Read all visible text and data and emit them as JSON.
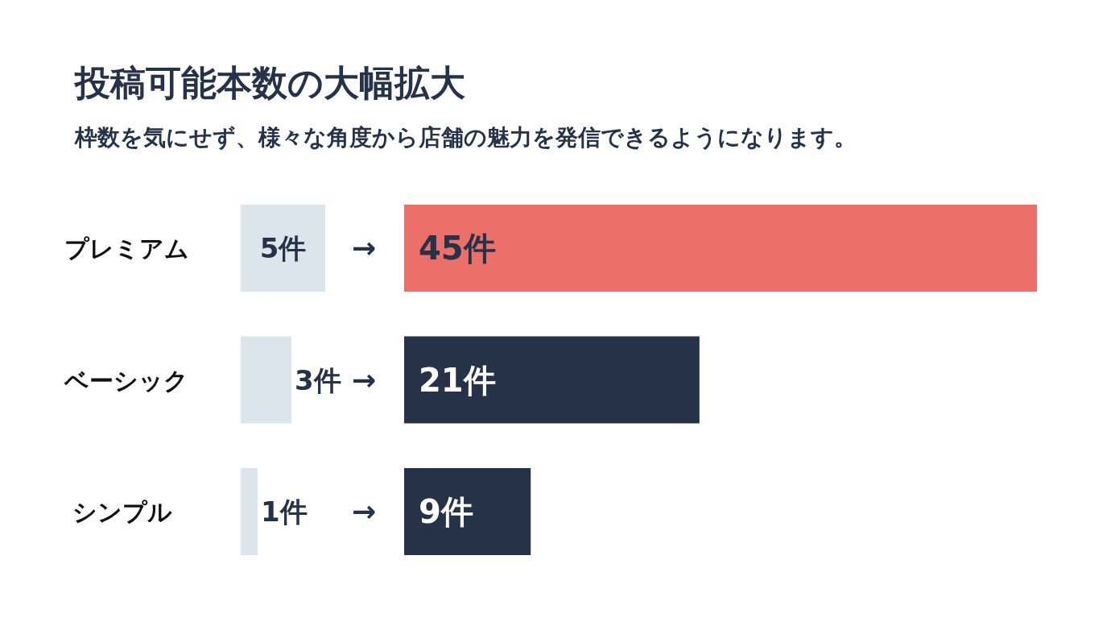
{
  "chart_data": [
    {
      "type": "bar",
      "orientation": "horizontal",
      "title": "投稿可能本数の大幅拡大",
      "subtitle": "枠数を気にせず、様々な角度から店舗の魅力を発信できるようになります。",
      "categories": [
        "プレミアム",
        "ベーシック",
        "シンプル"
      ],
      "values": [
        5,
        3,
        1
      ],
      "color": "#dde5ec",
      "value_labels": [
        "5件",
        "3件",
        "1件"
      ],
      "annotations": [
        "→",
        "→",
        "→"
      ]
    },
    {
      "type": "bar",
      "orientation": "horizontal",
      "categories": [
        "プレミアム",
        "ベーシック",
        "シンプル"
      ],
      "tick_labels": false,
      "values": [
        45,
        21,
        9
      ],
      "colors": [
        "#ec7069",
        "#253247",
        "#253247"
      ],
      "value_labels": [
        "45件",
        "21件",
        "9件"
      ]
    }
  ]
}
